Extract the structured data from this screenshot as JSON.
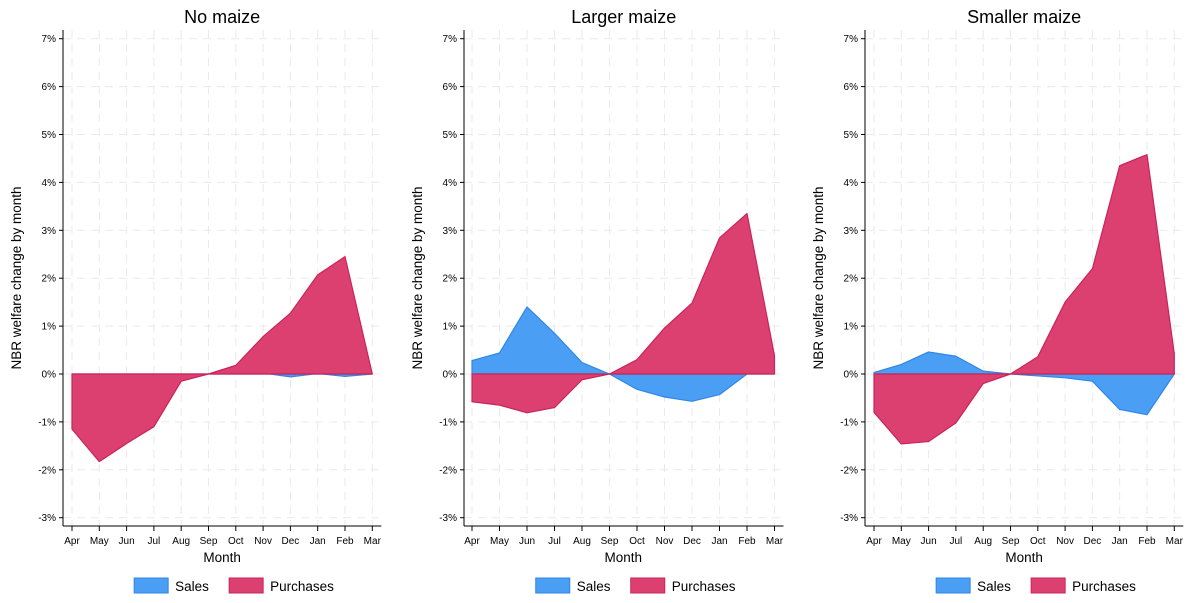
{
  "chart_data": [
    {
      "type": "area",
      "title": "No maize",
      "xlabel": "Month",
      "ylabel": "NBR welfare change by month",
      "categories": [
        "Apr",
        "May",
        "Jun",
        "Jul",
        "Aug",
        "Sep",
        "Oct",
        "Nov",
        "Dec",
        "Jan",
        "Feb",
        "Mar"
      ],
      "ylim": [
        -3,
        7
      ],
      "yticks": [
        -3,
        -2,
        -1,
        0,
        1,
        2,
        3,
        4,
        5,
        6,
        7
      ],
      "ytick_labels": [
        "-3%",
        "-2%",
        "-1%",
        "0%",
        "1%",
        "2%",
        "3%",
        "4%",
        "5%",
        "6%",
        "7%"
      ],
      "grid": true,
      "series": [
        {
          "name": "Sales",
          "color": "#4a9ff5",
          "values": [
            0,
            0,
            0,
            0,
            0,
            0,
            0,
            0.02,
            -0.06,
            0.01,
            -0.05,
            0
          ]
        },
        {
          "name": "Purchases",
          "color": "#dc4070",
          "values": [
            -1.15,
            -1.83,
            -1.45,
            -1.1,
            -0.15,
            0,
            0.18,
            0.78,
            1.27,
            2.07,
            2.45,
            0
          ]
        }
      ]
    },
    {
      "type": "area",
      "title": "Larger maize",
      "xlabel": "Month",
      "ylabel": "NBR welfare change by month",
      "categories": [
        "Apr",
        "May",
        "Jun",
        "Jul",
        "Aug",
        "Sep",
        "Oct",
        "Nov",
        "Dec",
        "Jan",
        "Feb",
        "Mar"
      ],
      "ylim": [
        -3,
        7
      ],
      "yticks": [
        -3,
        -2,
        -1,
        0,
        1,
        2,
        3,
        4,
        5,
        6,
        7
      ],
      "ytick_labels": [
        "-3%",
        "-2%",
        "-1%",
        "0%",
        "1%",
        "2%",
        "3%",
        "4%",
        "5%",
        "6%",
        "7%"
      ],
      "grid": true,
      "series": [
        {
          "name": "Sales",
          "color": "#4a9ff5",
          "values": [
            0.28,
            0.44,
            1.4,
            0.85,
            0.24,
            0,
            -0.32,
            -0.48,
            -0.57,
            -0.43,
            0,
            0
          ]
        },
        {
          "name": "Purchases",
          "color": "#dc4070",
          "values": [
            -0.58,
            -0.65,
            -0.81,
            -0.7,
            -0.12,
            0,
            0.3,
            0.96,
            1.48,
            2.84,
            3.35,
            0.38
          ]
        }
      ]
    },
    {
      "type": "area",
      "title": "Smaller maize",
      "xlabel": "Month",
      "ylabel": "NBR welfare change by month",
      "categories": [
        "Apr",
        "May",
        "Jun",
        "Jul",
        "Aug",
        "Sep",
        "Oct",
        "Nov",
        "Dec",
        "Jan",
        "Feb",
        "Mar"
      ],
      "ylim": [
        -3,
        7
      ],
      "yticks": [
        -3,
        -2,
        -1,
        0,
        1,
        2,
        3,
        4,
        5,
        6,
        7
      ],
      "ytick_labels": [
        "-3%",
        "-2%",
        "-1%",
        "0%",
        "1%",
        "2%",
        "3%",
        "4%",
        "5%",
        "6%",
        "7%"
      ],
      "grid": true,
      "series": [
        {
          "name": "Sales",
          "color": "#4a9ff5",
          "values": [
            0.03,
            0.2,
            0.46,
            0.37,
            0.06,
            0,
            -0.04,
            -0.08,
            -0.15,
            -0.74,
            -0.85,
            0
          ]
        },
        {
          "name": "Purchases",
          "color": "#dc4070",
          "values": [
            -0.8,
            -1.46,
            -1.41,
            -1.02,
            -0.2,
            0,
            0.36,
            1.5,
            2.2,
            4.35,
            4.58,
            0.42
          ]
        }
      ]
    }
  ],
  "legend": {
    "position": "bottom",
    "entries": [
      {
        "label": "Sales",
        "color": "#4a9ff5"
      },
      {
        "label": "Purchases",
        "color": "#dc4070"
      }
    ]
  }
}
